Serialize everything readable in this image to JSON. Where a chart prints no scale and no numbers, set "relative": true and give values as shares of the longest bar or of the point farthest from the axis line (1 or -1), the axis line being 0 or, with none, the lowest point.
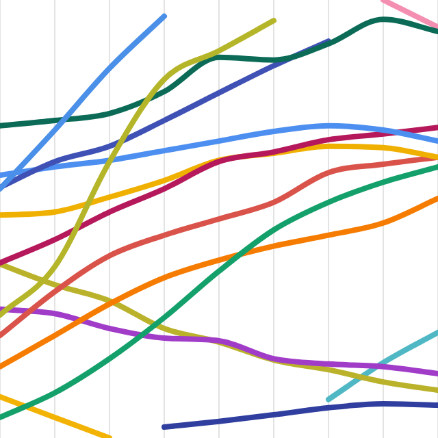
{
  "chart_data": {
    "type": "line",
    "relative": true,
    "grid": "x",
    "marker": "none",
    "line_style": "solid",
    "legend": false,
    "categories": [
      null,
      null,
      null,
      null,
      null,
      null,
      null,
      null,
      null
    ],
    "series": [
      {
        "color": "#4a8fe8",
        "values": [
          0.569,
          0.703,
          0.844,
          0.963,
          null,
          null,
          null,
          null,
          null
        ]
      },
      {
        "color": "#b5b52a",
        "values": [
          0.281,
          0.391,
          0.631,
          0.819,
          0.884,
          0.953,
          null,
          null,
          null
        ]
      },
      {
        "color": "#0b6b57",
        "values": [
          0.713,
          0.725,
          0.741,
          0.791,
          0.869,
          0.863,
          0.9,
          0.956,
          0.928
        ]
      },
      {
        "color": "#3f51b5",
        "values": [
          0.572,
          0.631,
          0.666,
          0.725,
          0.788,
          0.85,
          0.906,
          null,
          null
        ]
      },
      {
        "color": "#f48fb1",
        "values": [
          null,
          null,
          null,
          null,
          null,
          null,
          null,
          1,
          0.938
        ]
      },
      {
        "color": "#4d8ff0",
        "values": [
          0.6,
          0.619,
          0.634,
          0.656,
          0.678,
          0.7,
          0.713,
          0.703,
          0.678
        ]
      },
      {
        "color": "#b5195b",
        "values": [
          0.4,
          0.453,
          0.516,
          0.569,
          0.631,
          0.653,
          0.681,
          0.694,
          0.709
        ]
      },
      {
        "color": "#f0b000",
        "values": [
          0.509,
          0.516,
          0.55,
          0.588,
          0.634,
          0.65,
          0.666,
          0.663,
          0.641
        ]
      },
      {
        "color": "#d9534a",
        "values": [
          0.234,
          0.334,
          0.416,
          0.463,
          0.5,
          0.538,
          0.606,
          0.625,
          0.641
        ]
      },
      {
        "color": "#14a06a",
        "values": [
          0.047,
          0.103,
          0.181,
          0.275,
          0.381,
          0.475,
          0.538,
          0.584,
          0.619
        ]
      },
      {
        "color": "#f57c00",
        "values": [
          0.163,
          0.234,
          0.306,
          0.366,
          0.406,
          0.438,
          0.463,
          0.491,
          0.547
        ]
      },
      {
        "color": "#a03cc8",
        "values": [
          0.294,
          0.284,
          0.25,
          0.228,
          0.222,
          0.181,
          0.169,
          0.163,
          0.147
        ]
      },
      {
        "color": "#bab22b",
        "values": [
          0.397,
          0.35,
          0.313,
          0.25,
          0.219,
          0.178,
          0.156,
          0.128,
          0.109
        ]
      },
      {
        "color": "#f2b305",
        "values": [
          0.094,
          0.047,
          0,
          null,
          null,
          null,
          null,
          null,
          null
        ]
      },
      {
        "color": "#303f9f",
        "values": [
          null,
          null,
          null,
          0.025,
          0.038,
          0.053,
          0.069,
          0.078,
          0.075
        ]
      },
      {
        "color": "#4fb8c4",
        "values": [
          null,
          null,
          null,
          null,
          null,
          null,
          0.088,
          0.172,
          0.241
        ]
      }
    ]
  }
}
